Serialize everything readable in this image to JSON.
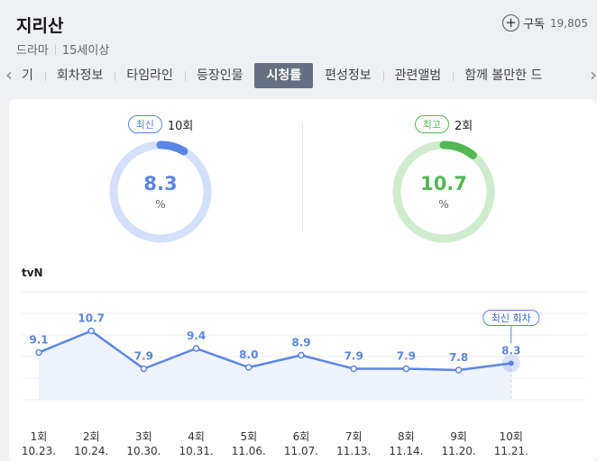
{
  "header": {
    "title": "지리산",
    "genre": "드라마",
    "rating": "15세이상",
    "subscribe_label": "구독",
    "subscribe_count": "19,805"
  },
  "tabs": {
    "items": [
      "기",
      "회차정보",
      "타임라인",
      "등장인물",
      "시청률",
      "편성정보",
      "관련앨범",
      "함께 볼만한 드"
    ],
    "active_index": 4
  },
  "stats": {
    "latest": {
      "badge": "최신",
      "episode": "10회",
      "value": "8.3",
      "unit": "%",
      "color": "#5b86e5",
      "track": "#d4e0fa"
    },
    "highest": {
      "badge": "최고",
      "episode": "2회",
      "value": "10.7",
      "unit": "%",
      "color": "#52b855",
      "track": "#cfeccf"
    }
  },
  "chart_data": {
    "type": "line",
    "network": "tvN",
    "categories": [
      "1회",
      "2회",
      "3회",
      "4회",
      "5회",
      "6회",
      "7회",
      "8회",
      "9회",
      "10회"
    ],
    "dates": [
      "10.23.",
      "10.24.",
      "10.30.",
      "10.31.",
      "11.06.",
      "11.07.",
      "11.13.",
      "11.14.",
      "11.20.",
      "11.21."
    ],
    "values": [
      9.1,
      10.7,
      7.9,
      9.4,
      8.0,
      8.9,
      7.9,
      7.9,
      7.8,
      8.3
    ],
    "value_labels": [
      "9.1",
      "10.7",
      "7.9",
      "9.4",
      "8.0",
      "8.9",
      "7.9",
      "7.9",
      "7.8",
      "8.3"
    ],
    "latest_label": "최신 회차",
    "latest_index": 9,
    "line_color": "#5b86e5",
    "fill_color": "#eef3fd",
    "grid": true
  }
}
